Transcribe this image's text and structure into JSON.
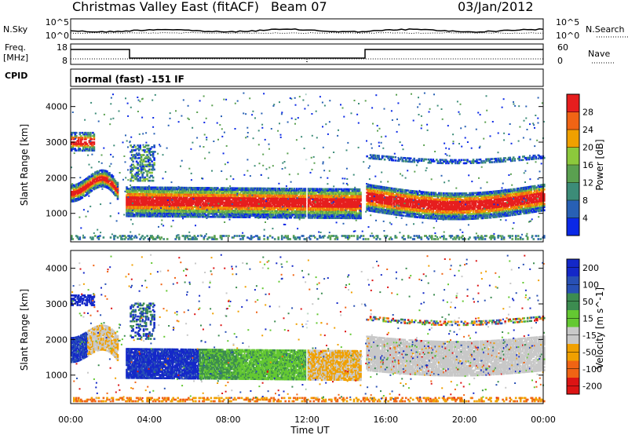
{
  "header": {
    "title": "Christmas Valley East (fitACF)",
    "beam": "Beam 07",
    "date": "03/Jan/2012"
  },
  "top_panels": {
    "nsky": {
      "label": "N.Sky",
      "right_label": "N.Search",
      "ticks": [
        "10^5",
        "10^0"
      ]
    },
    "freq": {
      "label_line1": "Freq.",
      "label_line2": "[MHz]",
      "right_label": "Nave",
      "left_ticks": [
        "18",
        "8"
      ],
      "right_ticks": [
        "60",
        "0"
      ]
    },
    "cpid": {
      "label": "CPID",
      "text": "normal (fast) -151 IF"
    }
  },
  "chart_data": [
    {
      "type": "heatmap",
      "name": "power",
      "ylabel": "Slant Range [km]",
      "ylim": [
        200,
        4500
      ],
      "y_ticks": [
        1000,
        2000,
        3000,
        4000
      ],
      "colorbar": {
        "label": "Power [dB]",
        "ticks": [
          4,
          8,
          12,
          16,
          20,
          24,
          28
        ],
        "range": [
          0,
          32
        ],
        "colors": [
          "#0a28e6",
          "#2860b4",
          "#3c8c78",
          "#5aa050",
          "#8cc83c",
          "#f0a000",
          "#f06414",
          "#e61e1e"
        ]
      }
    },
    {
      "type": "heatmap",
      "name": "velocity",
      "ylabel": "Slant Range [km]",
      "ylim": [
        200,
        4500
      ],
      "y_ticks": [
        1000,
        2000,
        3000,
        4000
      ],
      "xlabel": "Time UT",
      "x_ticks": [
        "00:00",
        "04:00",
        "08:00",
        "12:00",
        "16:00",
        "20:00",
        "00:00"
      ],
      "colorbar": {
        "label": "Velocity [m s^-1]",
        "ticks": [
          "200",
          "100",
          "50",
          "15",
          "-15",
          "-50",
          "-100",
          "-200"
        ],
        "colors": [
          "#1428c8",
          "#2850b4",
          "#3c8c50",
          "#64c832",
          "#c8c8c8",
          "#f0a000",
          "#f06414",
          "#dc1414"
        ]
      }
    }
  ]
}
